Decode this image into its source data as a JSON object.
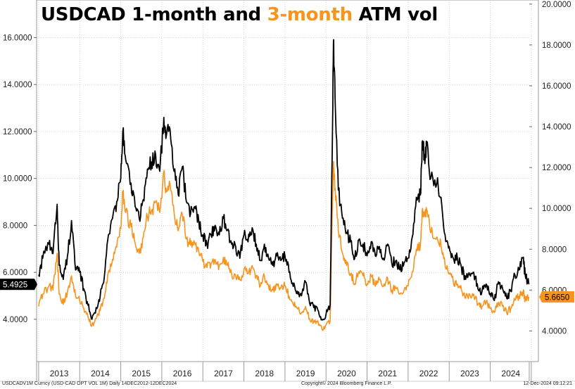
{
  "title": {
    "part1": "USDCAD 1-month and ",
    "part2": "3-month",
    "part3": " ATM vol"
  },
  "footer": {
    "left": "USDCADV1M Curncy (USD-CAD OPT VOL 1M)  Daily 14DEC2012-12DEC2024",
    "center": "Copyright© 2024 Bloomberg Finance L.P.",
    "right": "12-Dec-2024 09:12:21"
  },
  "colors": {
    "series_1m": "#000000",
    "series_3m": "#f7941d",
    "grid": "#c8c8c8"
  },
  "chart_data": {
    "type": "line",
    "grid": true,
    "x": {
      "range": [
        2012.95,
        2024.95
      ],
      "tick_labels": [
        "2013",
        "2014",
        "2015",
        "2016",
        "2017",
        "2018",
        "2019",
        "2020",
        "2021",
        "2022",
        "2023",
        "2024"
      ]
    },
    "y_left": {
      "range": [
        2.2,
        17.6
      ],
      "ticks": [
        4,
        6,
        8,
        10,
        12,
        14,
        16
      ],
      "tick_labels": [
        "4.0000",
        "6.0000",
        "8.0000",
        "10.0000",
        "12.0000",
        "14.0000",
        "16.0000"
      ]
    },
    "y_right": {
      "range": [
        2.5,
        20.2
      ],
      "ticks": [
        4,
        6,
        8,
        10,
        12,
        14,
        16,
        18,
        20
      ],
      "tick_labels": [
        "4.0000",
        "6.0000",
        "8.0000",
        "10.0000",
        "12.0000",
        "14.0000",
        "16.0000",
        "18.0000",
        "20.0000"
      ]
    },
    "series": [
      {
        "axis": "left",
        "last_value": "5.4925",
        "points": [
          [
            2013.0,
            5.9
          ],
          [
            2013.1,
            6.6
          ],
          [
            2013.25,
            7.2
          ],
          [
            2013.35,
            6.8
          ],
          [
            2013.45,
            8.9
          ],
          [
            2013.5,
            6.3
          ],
          [
            2013.6,
            5.7
          ],
          [
            2013.7,
            6.7
          ],
          [
            2013.8,
            8.2
          ],
          [
            2013.9,
            6.1
          ],
          [
            2014.0,
            6.0
          ],
          [
            2014.1,
            5.3
          ],
          [
            2014.2,
            4.6
          ],
          [
            2014.3,
            4.0
          ],
          [
            2014.4,
            4.5
          ],
          [
            2014.5,
            5.0
          ],
          [
            2014.6,
            5.8
          ],
          [
            2014.7,
            7.6
          ],
          [
            2014.8,
            8.3
          ],
          [
            2014.9,
            9.0
          ],
          [
            2015.0,
            10.0
          ],
          [
            2015.05,
            12.0
          ],
          [
            2015.12,
            10.8
          ],
          [
            2015.25,
            9.8
          ],
          [
            2015.35,
            8.8
          ],
          [
            2015.45,
            8.3
          ],
          [
            2015.55,
            9.1
          ],
          [
            2015.65,
            10.4
          ],
          [
            2015.75,
            10.7
          ],
          [
            2015.85,
            11.0
          ],
          [
            2015.95,
            10.3
          ],
          [
            2016.05,
            12.6
          ],
          [
            2016.1,
            11.7
          ],
          [
            2016.2,
            12.1
          ],
          [
            2016.3,
            10.3
          ],
          [
            2016.4,
            9.3
          ],
          [
            2016.5,
            10.5
          ],
          [
            2016.6,
            9.0
          ],
          [
            2016.7,
            8.5
          ],
          [
            2016.8,
            8.8
          ],
          [
            2016.9,
            8.2
          ],
          [
            2017.0,
            7.6
          ],
          [
            2017.1,
            7.2
          ],
          [
            2017.2,
            7.6
          ],
          [
            2017.3,
            8.0
          ],
          [
            2017.4,
            7.6
          ],
          [
            2017.5,
            8.3
          ],
          [
            2017.6,
            7.8
          ],
          [
            2017.7,
            7.2
          ],
          [
            2017.8,
            7.1
          ],
          [
            2017.9,
            6.6
          ],
          [
            2018.0,
            7.6
          ],
          [
            2018.1,
            7.3
          ],
          [
            2018.2,
            7.9
          ],
          [
            2018.3,
            7.2
          ],
          [
            2018.4,
            6.5
          ],
          [
            2018.5,
            7.2
          ],
          [
            2018.6,
            6.6
          ],
          [
            2018.7,
            6.3
          ],
          [
            2018.8,
            6.7
          ],
          [
            2018.9,
            6.5
          ],
          [
            2019.0,
            6.7
          ],
          [
            2019.1,
            6.0
          ],
          [
            2019.2,
            5.4
          ],
          [
            2019.3,
            5.2
          ],
          [
            2019.4,
            5.0
          ],
          [
            2019.5,
            5.6
          ],
          [
            2019.6,
            4.7
          ],
          [
            2019.7,
            4.5
          ],
          [
            2019.8,
            4.4
          ],
          [
            2019.9,
            4.0
          ],
          [
            2020.0,
            4.2
          ],
          [
            2020.1,
            4.6
          ],
          [
            2020.15,
            11.0
          ],
          [
            2020.18,
            15.8
          ],
          [
            2020.22,
            13.4
          ],
          [
            2020.3,
            9.5
          ],
          [
            2020.4,
            8.3
          ],
          [
            2020.5,
            7.7
          ],
          [
            2020.6,
            7.3
          ],
          [
            2020.7,
            6.6
          ],
          [
            2020.8,
            7.4
          ],
          [
            2020.9,
            7.2
          ],
          [
            2021.0,
            6.7
          ],
          [
            2021.1,
            7.3
          ],
          [
            2021.2,
            6.7
          ],
          [
            2021.3,
            7.1
          ],
          [
            2021.4,
            6.6
          ],
          [
            2021.5,
            7.2
          ],
          [
            2021.6,
            6.4
          ],
          [
            2021.7,
            6.5
          ],
          [
            2021.8,
            6.1
          ],
          [
            2021.9,
            6.4
          ],
          [
            2022.0,
            6.6
          ],
          [
            2022.1,
            7.5
          ],
          [
            2022.2,
            9.2
          ],
          [
            2022.3,
            9.3
          ],
          [
            2022.35,
            11.6
          ],
          [
            2022.4,
            10.8
          ],
          [
            2022.45,
            11.4
          ],
          [
            2022.55,
            10.0
          ],
          [
            2022.7,
            9.8
          ],
          [
            2022.8,
            9.2
          ],
          [
            2022.9,
            7.6
          ],
          [
            2023.0,
            7.1
          ],
          [
            2023.1,
            6.6
          ],
          [
            2023.2,
            6.6
          ],
          [
            2023.3,
            6.2
          ],
          [
            2023.4,
            5.7
          ],
          [
            2023.5,
            5.9
          ],
          [
            2023.6,
            6.0
          ],
          [
            2023.7,
            5.3
          ],
          [
            2023.8,
            5.2
          ],
          [
            2023.9,
            5.5
          ],
          [
            2024.0,
            5.1
          ],
          [
            2024.1,
            4.8
          ],
          [
            2024.2,
            5.6
          ],
          [
            2024.3,
            5.3
          ],
          [
            2024.4,
            4.9
          ],
          [
            2024.5,
            5.2
          ],
          [
            2024.6,
            5.9
          ],
          [
            2024.7,
            6.1
          ],
          [
            2024.8,
            6.6
          ],
          [
            2024.85,
            5.9
          ],
          [
            2024.94,
            5.49
          ]
        ]
      },
      {
        "axis": "right",
        "last_value": "5.6650",
        "points": [
          [
            2013.0,
            5.2
          ],
          [
            2013.1,
            5.8
          ],
          [
            2013.25,
            6.2
          ],
          [
            2013.35,
            6.0
          ],
          [
            2013.45,
            7.8
          ],
          [
            2013.5,
            5.8
          ],
          [
            2013.6,
            5.3
          ],
          [
            2013.7,
            5.9
          ],
          [
            2013.8,
            6.7
          ],
          [
            2013.9,
            5.7
          ],
          [
            2014.0,
            5.5
          ],
          [
            2014.1,
            5.1
          ],
          [
            2014.2,
            4.7
          ],
          [
            2014.3,
            4.3
          ],
          [
            2014.4,
            4.6
          ],
          [
            2014.5,
            5.0
          ],
          [
            2014.6,
            5.6
          ],
          [
            2014.7,
            6.9
          ],
          [
            2014.8,
            7.5
          ],
          [
            2014.9,
            8.1
          ],
          [
            2015.0,
            9.0
          ],
          [
            2015.05,
            10.8
          ],
          [
            2015.12,
            9.8
          ],
          [
            2015.25,
            9.1
          ],
          [
            2015.35,
            8.3
          ],
          [
            2015.45,
            7.8
          ],
          [
            2015.55,
            8.6
          ],
          [
            2015.65,
            9.6
          ],
          [
            2015.75,
            9.9
          ],
          [
            2015.85,
            10.3
          ],
          [
            2015.95,
            9.8
          ],
          [
            2016.05,
            11.8
          ],
          [
            2016.1,
            11.0
          ],
          [
            2016.2,
            11.2
          ],
          [
            2016.3,
            9.8
          ],
          [
            2016.4,
            8.9
          ],
          [
            2016.5,
            9.7
          ],
          [
            2016.6,
            8.5
          ],
          [
            2016.7,
            8.2
          ],
          [
            2016.8,
            8.3
          ],
          [
            2016.9,
            7.9
          ],
          [
            2017.0,
            7.4
          ],
          [
            2017.1,
            7.1
          ],
          [
            2017.2,
            7.3
          ],
          [
            2017.3,
            7.5
          ],
          [
            2017.4,
            7.2
          ],
          [
            2017.5,
            7.6
          ],
          [
            2017.6,
            7.2
          ],
          [
            2017.7,
            6.8
          ],
          [
            2017.8,
            6.7
          ],
          [
            2017.9,
            6.5
          ],
          [
            2018.0,
            7.0
          ],
          [
            2018.1,
            6.8
          ],
          [
            2018.2,
            7.2
          ],
          [
            2018.3,
            6.7
          ],
          [
            2018.4,
            6.2
          ],
          [
            2018.5,
            6.7
          ],
          [
            2018.6,
            6.2
          ],
          [
            2018.7,
            6.0
          ],
          [
            2018.8,
            6.3
          ],
          [
            2018.9,
            6.1
          ],
          [
            2019.0,
            6.2
          ],
          [
            2019.1,
            5.7
          ],
          [
            2019.2,
            5.3
          ],
          [
            2019.3,
            5.1
          ],
          [
            2019.4,
            4.9
          ],
          [
            2019.5,
            5.2
          ],
          [
            2019.6,
            4.6
          ],
          [
            2019.7,
            4.5
          ],
          [
            2019.8,
            4.5
          ],
          [
            2019.9,
            4.1
          ],
          [
            2020.0,
            4.3
          ],
          [
            2020.1,
            4.5
          ],
          [
            2020.15,
            9.8
          ],
          [
            2020.18,
            12.3
          ],
          [
            2020.22,
            11.0
          ],
          [
            2020.3,
            8.9
          ],
          [
            2020.4,
            7.8
          ],
          [
            2020.5,
            7.2
          ],
          [
            2020.6,
            6.8
          ],
          [
            2020.7,
            6.3
          ],
          [
            2020.8,
            6.9
          ],
          [
            2020.9,
            6.7
          ],
          [
            2021.0,
            6.3
          ],
          [
            2021.1,
            6.7
          ],
          [
            2021.2,
            6.2
          ],
          [
            2021.3,
            6.5
          ],
          [
            2021.4,
            6.2
          ],
          [
            2021.5,
            6.6
          ],
          [
            2021.6,
            6.0
          ],
          [
            2021.7,
            6.1
          ],
          [
            2021.8,
            5.8
          ],
          [
            2021.9,
            6.0
          ],
          [
            2022.0,
            6.2
          ],
          [
            2022.1,
            6.9
          ],
          [
            2022.2,
            8.0
          ],
          [
            2022.3,
            8.2
          ],
          [
            2022.35,
            10.0
          ],
          [
            2022.4,
            9.6
          ],
          [
            2022.45,
            9.9
          ],
          [
            2022.55,
            8.8
          ],
          [
            2022.7,
            8.6
          ],
          [
            2022.8,
            8.2
          ],
          [
            2022.9,
            7.2
          ],
          [
            2023.0,
            6.8
          ],
          [
            2023.1,
            6.4
          ],
          [
            2023.2,
            6.3
          ],
          [
            2023.3,
            6.0
          ],
          [
            2023.4,
            5.6
          ],
          [
            2023.5,
            5.8
          ],
          [
            2023.6,
            5.8
          ],
          [
            2023.7,
            5.3
          ],
          [
            2023.8,
            5.2
          ],
          [
            2023.9,
            5.4
          ],
          [
            2024.0,
            5.1
          ],
          [
            2024.1,
            4.9
          ],
          [
            2024.2,
            5.4
          ],
          [
            2024.3,
            5.2
          ],
          [
            2024.4,
            4.9
          ],
          [
            2024.5,
            5.1
          ],
          [
            2024.6,
            5.5
          ],
          [
            2024.7,
            5.7
          ],
          [
            2024.8,
            5.9
          ],
          [
            2024.85,
            5.5
          ],
          [
            2024.94,
            5.665
          ]
        ]
      }
    ]
  }
}
